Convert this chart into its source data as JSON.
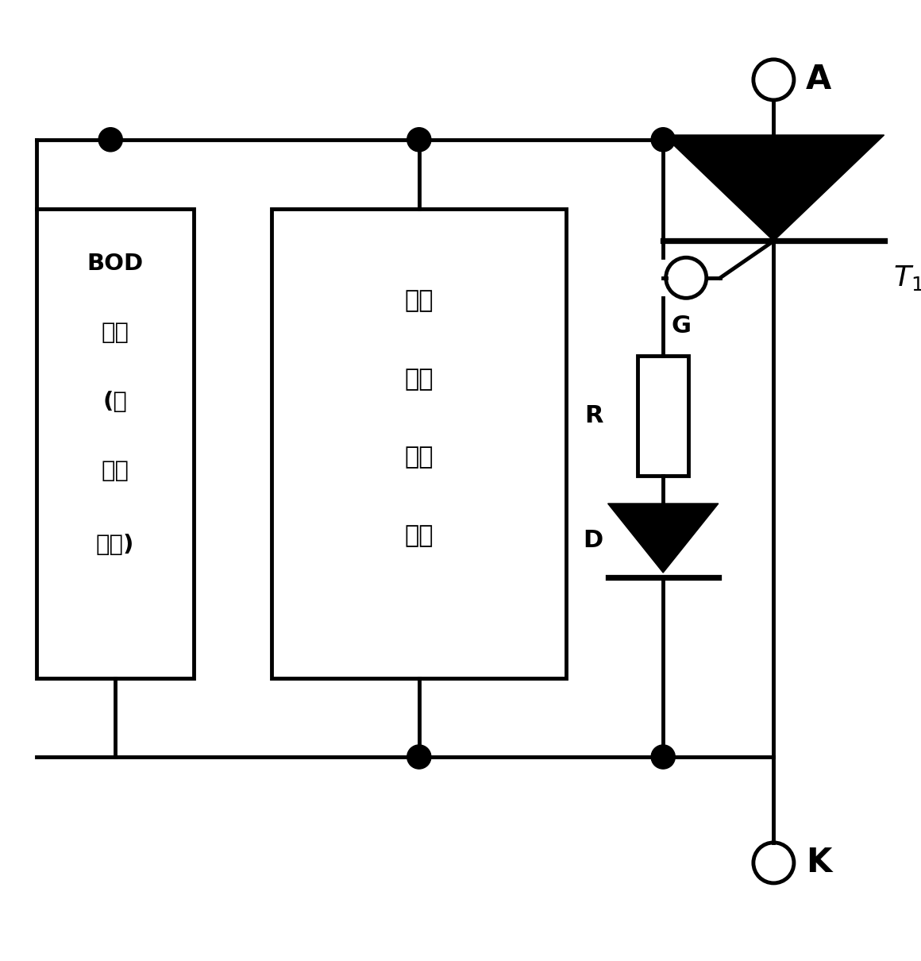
{
  "bg_color": "#ffffff",
  "line_color": "#000000",
  "line_width": 3.5,
  "fig_width": 11.6,
  "fig_height": 12.1,
  "bod_text": [
    "BOD",
    "电路",
    "(失",
    "电时",
    "生效)"
  ],
  "drv_text": [
    "驱动",
    "带电",
    "工作",
    "单元"
  ],
  "label_A": "A",
  "label_G": "G",
  "label_T1": "$T_1$",
  "label_K": "K",
  "label_R": "R",
  "label_D": "D"
}
